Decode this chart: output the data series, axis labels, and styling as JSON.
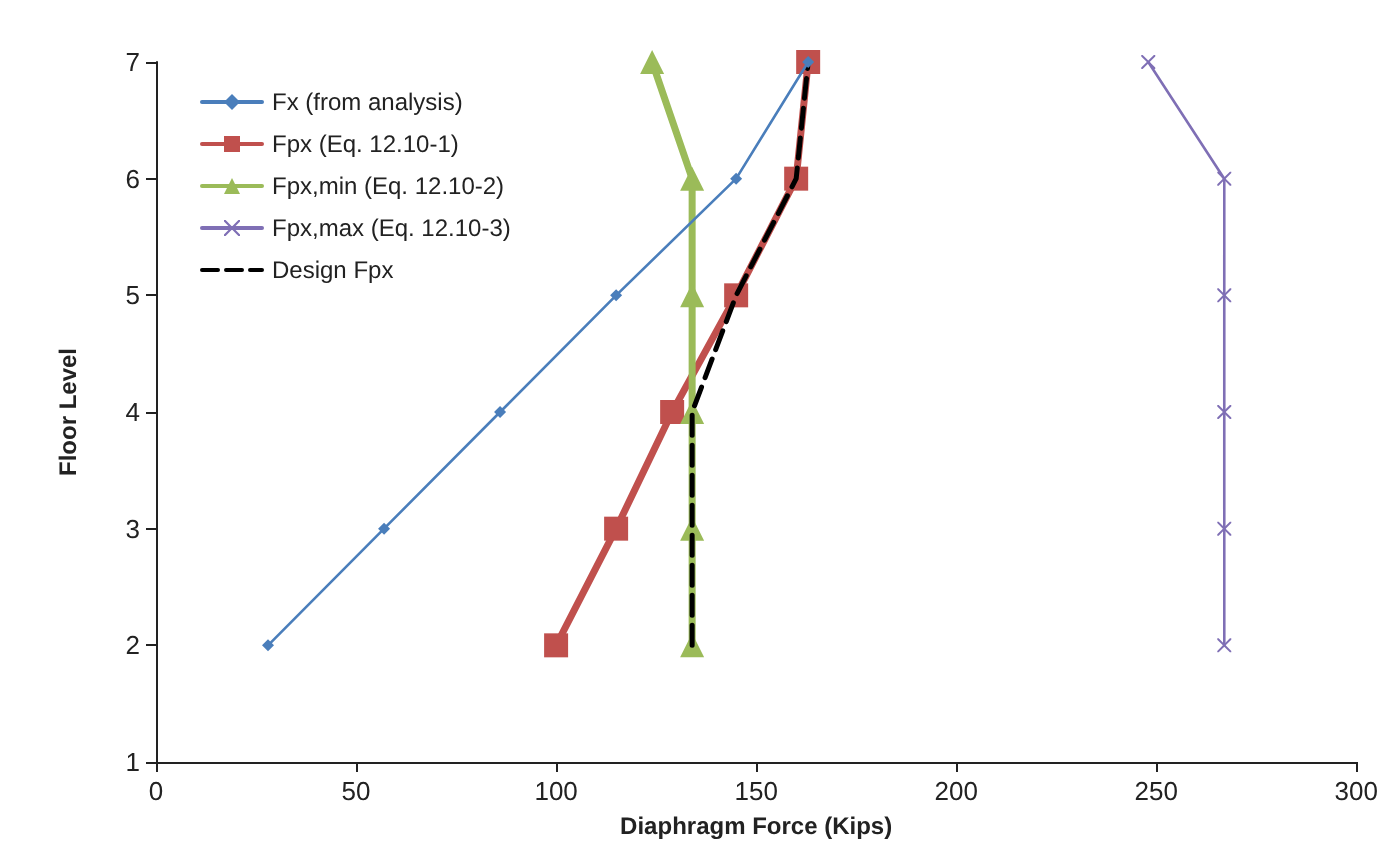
{
  "chart_data": {
    "type": "line",
    "xlabel": "Diaphragm Force (Kips)",
    "ylabel": "Floor Level",
    "xlim": [
      0,
      300
    ],
    "xticks": [
      0,
      50,
      100,
      150,
      200,
      250,
      300
    ],
    "ylim": [
      1,
      7
    ],
    "yticks": [
      1,
      2,
      3,
      4,
      5,
      6,
      7
    ],
    "grid": false,
    "legend": "top left",
    "series": [
      {
        "name": "Fx (from analysis)",
        "color": "#4a7ebb",
        "marker": "diamond",
        "line_style": "solid",
        "x": [
          28,
          57,
          86,
          115,
          145,
          163
        ],
        "values": [
          2,
          3,
          4,
          5,
          6,
          7
        ]
      },
      {
        "name": "Fpx (Eq. 12.10-1)",
        "color": "#c0504d",
        "marker": "square",
        "line_style": "solid",
        "x": [
          100,
          115,
          129,
          145,
          160,
          163
        ],
        "values": [
          2,
          3,
          4,
          5,
          6,
          7
        ]
      },
      {
        "name": "Fpx,min (Eq. 12.10-2)",
        "color": "#9bbb59",
        "marker": "triangle",
        "line_style": "solid",
        "x": [
          134,
          134,
          134,
          134,
          134,
          124
        ],
        "values": [
          2,
          3,
          4,
          5,
          6,
          7
        ]
      },
      {
        "name": "Fpx,max (Eq. 12.10-3)",
        "color": "#7f6fb5",
        "marker": "cross",
        "line_style": "solid",
        "x": [
          267,
          267,
          267,
          267,
          267,
          248
        ],
        "values": [
          2,
          3,
          4,
          5,
          6,
          7
        ]
      },
      {
        "name": "Design Fpx",
        "color": "#000000",
        "marker": "none",
        "line_style": "dashed",
        "x": [
          134,
          134,
          134,
          145,
          160,
          163
        ],
        "values": [
          2,
          3,
          4,
          5,
          6,
          7
        ]
      }
    ]
  }
}
